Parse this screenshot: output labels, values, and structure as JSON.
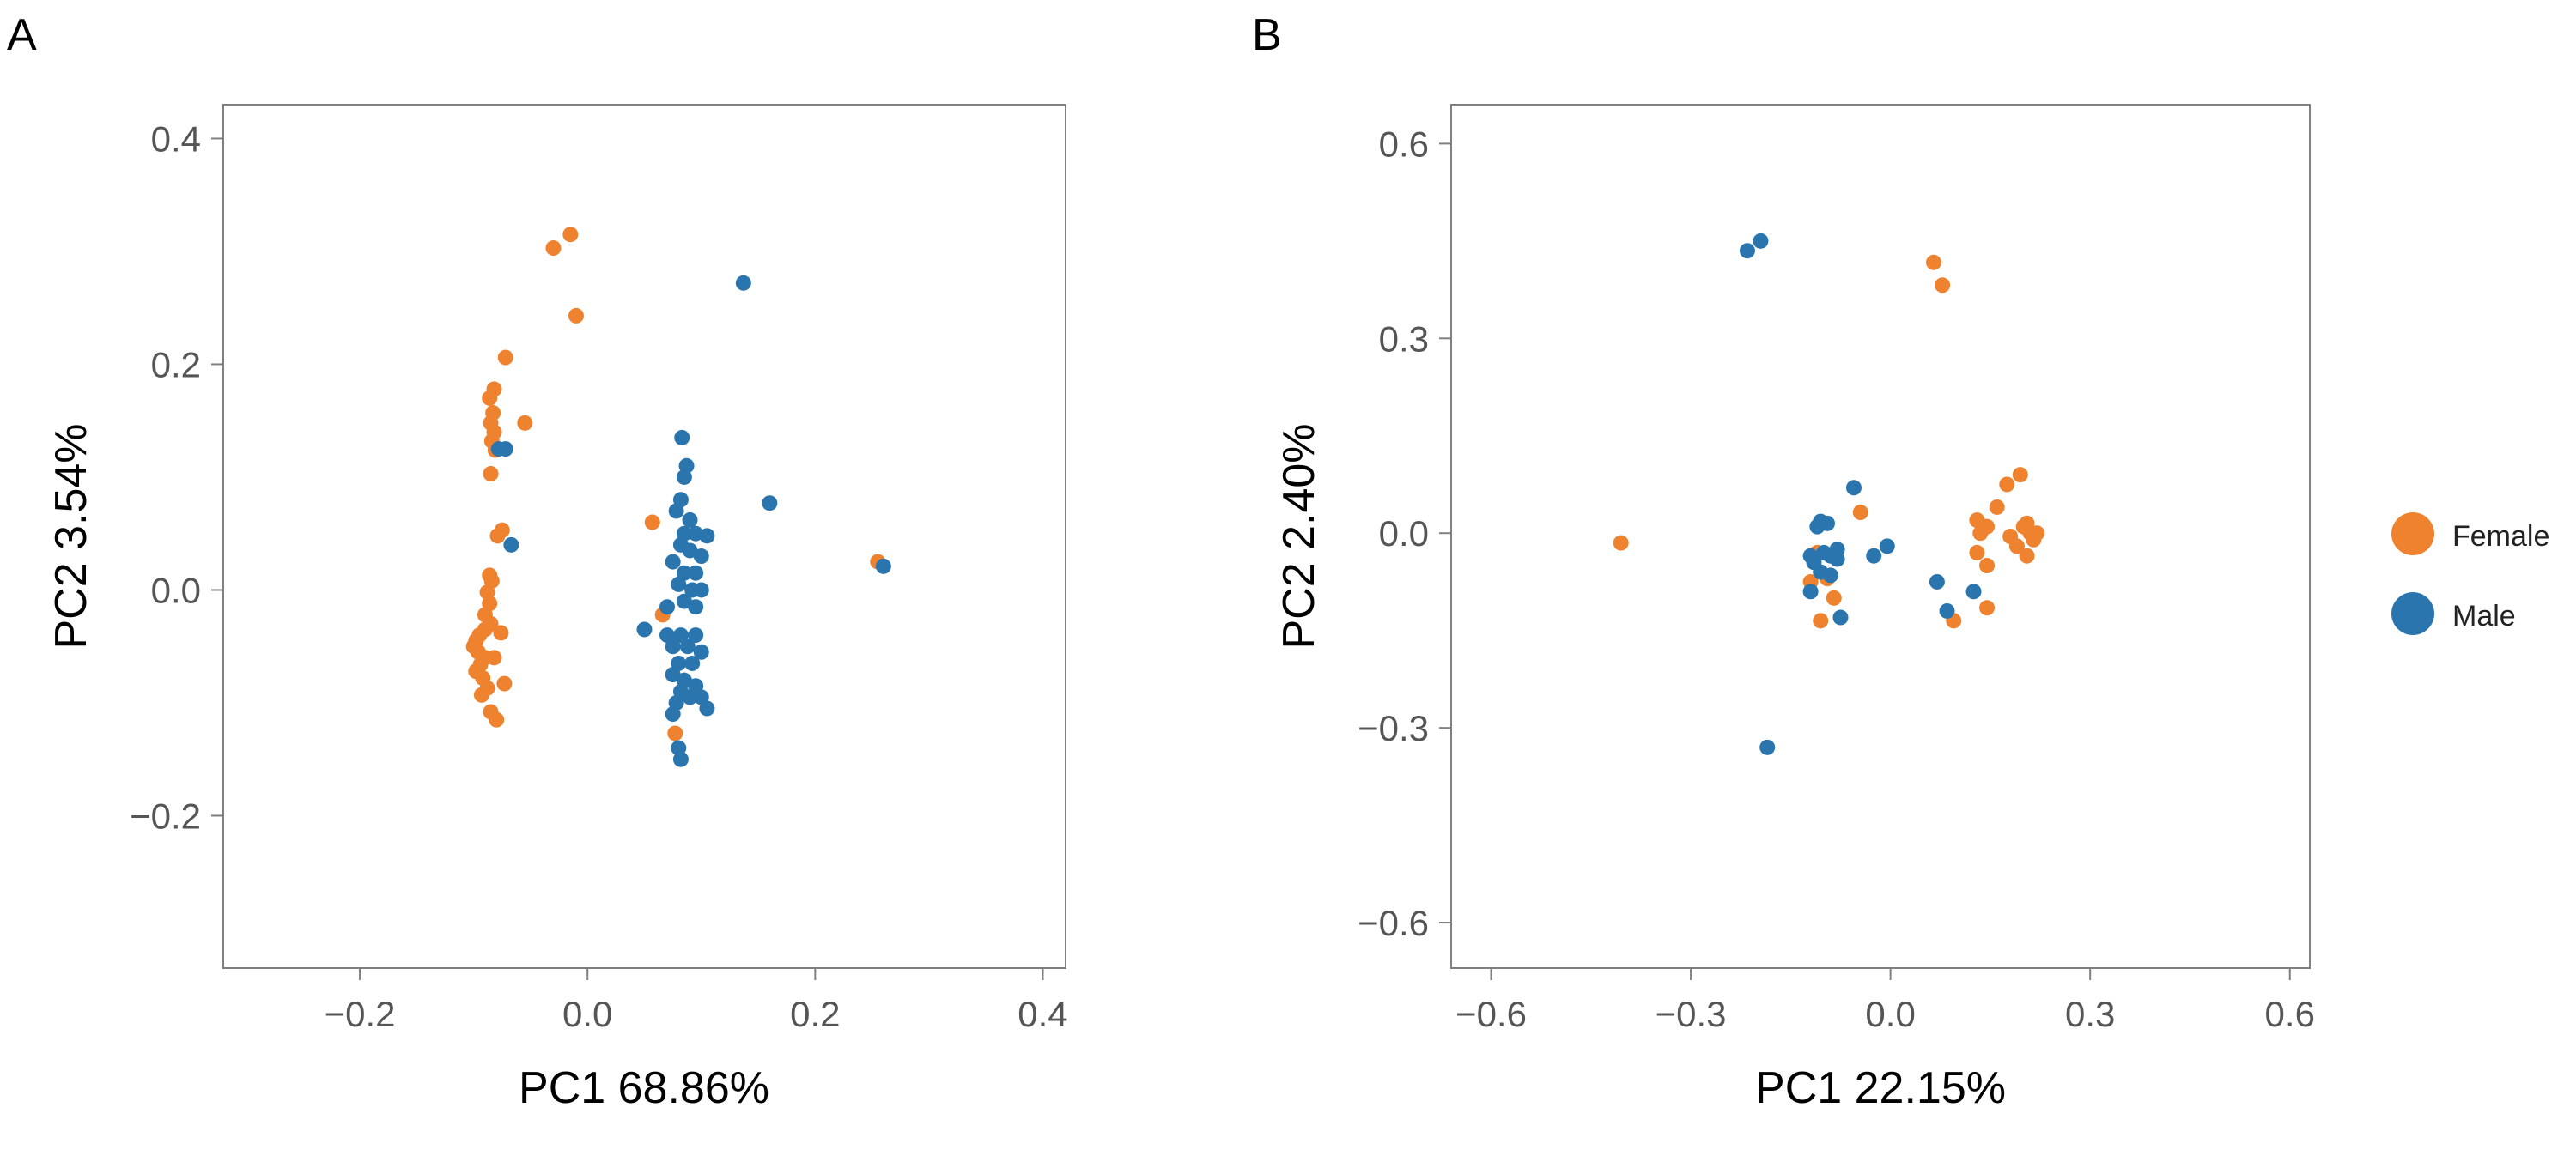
{
  "colors": {
    "Female": "#EE822F",
    "Male": "#2B75AE"
  },
  "legend": {
    "items": [
      "Female",
      "Male"
    ],
    "placement": "right"
  },
  "chart_data": [
    {
      "panel": "A",
      "type": "scatter",
      "xlabel": "PC1 68.86%",
      "ylabel": "PC2 3.54%",
      "xlim": [
        -0.32,
        0.42
      ],
      "ylim": [
        -0.335,
        0.43
      ],
      "xticks": [
        -0.2,
        0.0,
        0.2,
        0.4
      ],
      "xtick_labels": [
        "−0.2",
        "0.0",
        "0.2",
        "0.4"
      ],
      "yticks": [
        -0.2,
        0.0,
        0.2,
        0.4
      ],
      "ytick_labels": [
        "−0.2",
        "0.0",
        "0.2",
        "0.4"
      ],
      "grid": false,
      "series": [
        {
          "name": "Female",
          "color": "#EE822F",
          "points": [
            [
              -0.015,
              0.315
            ],
            [
              -0.03,
              0.303
            ],
            [
              -0.01,
              0.243
            ],
            [
              -0.072,
              0.206
            ],
            [
              -0.082,
              0.178
            ],
            [
              -0.086,
              0.17
            ],
            [
              -0.083,
              0.157
            ],
            [
              -0.085,
              0.148
            ],
            [
              -0.082,
              0.14
            ],
            [
              -0.084,
              0.132
            ],
            [
              -0.081,
              0.124
            ],
            [
              -0.085,
              0.103
            ],
            [
              -0.055,
              0.148
            ],
            [
              -0.075,
              0.053
            ],
            [
              -0.079,
              0.048
            ],
            [
              -0.086,
              0.013
            ],
            [
              -0.084,
              0.008
            ],
            [
              -0.088,
              -0.002
            ],
            [
              -0.086,
              -0.012
            ],
            [
              -0.09,
              -0.022
            ],
            [
              -0.085,
              -0.03
            ],
            [
              -0.09,
              -0.035
            ],
            [
              -0.095,
              -0.04
            ],
            [
              -0.098,
              -0.045
            ],
            [
              -0.1,
              -0.05
            ],
            [
              -0.096,
              -0.055
            ],
            [
              -0.09,
              -0.06
            ],
            [
              -0.094,
              -0.066
            ],
            [
              -0.098,
              -0.072
            ],
            [
              -0.092,
              -0.078
            ],
            [
              -0.088,
              -0.087
            ],
            [
              -0.093,
              -0.093
            ],
            [
              -0.085,
              -0.108
            ],
            [
              -0.08,
              -0.115
            ],
            [
              -0.073,
              -0.083
            ],
            [
              -0.076,
              -0.038
            ],
            [
              -0.082,
              -0.06
            ],
            [
              0.057,
              0.06
            ],
            [
              0.066,
              -0.022
            ],
            [
              0.077,
              -0.127
            ],
            [
              0.255,
              0.025
            ]
          ]
        },
        {
          "name": "Male",
          "color": "#2B75AE",
          "points": [
            [
              0.137,
              0.272
            ],
            [
              0.16,
              0.077
            ],
            [
              0.26,
              0.021
            ],
            [
              -0.078,
              0.125
            ],
            [
              -0.072,
              0.125
            ],
            [
              -0.067,
              0.04
            ],
            [
              0.083,
              0.135
            ],
            [
              0.087,
              0.11
            ],
            [
              0.085,
              0.1
            ],
            [
              0.082,
              0.08
            ],
            [
              0.078,
              0.07
            ],
            [
              0.09,
              0.062
            ],
            [
              0.085,
              0.05
            ],
            [
              0.095,
              0.05
            ],
            [
              0.105,
              0.048
            ],
            [
              0.082,
              0.04
            ],
            [
              0.09,
              0.035
            ],
            [
              0.1,
              0.03
            ],
            [
              0.075,
              0.025
            ],
            [
              0.085,
              0.015
            ],
            [
              0.095,
              0.015
            ],
            [
              0.08,
              0.005
            ],
            [
              0.092,
              0.0
            ],
            [
              0.1,
              0.0
            ],
            [
              0.085,
              -0.01
            ],
            [
              0.07,
              -0.015
            ],
            [
              0.095,
              -0.015
            ],
            [
              0.05,
              -0.035
            ],
            [
              0.07,
              -0.04
            ],
            [
              0.082,
              -0.04
            ],
            [
              0.095,
              -0.04
            ],
            [
              0.075,
              -0.05
            ],
            [
              0.088,
              -0.05
            ],
            [
              0.1,
              -0.055
            ],
            [
              0.08,
              -0.065
            ],
            [
              0.092,
              -0.065
            ],
            [
              0.075,
              -0.075
            ],
            [
              0.085,
              -0.08
            ],
            [
              0.095,
              -0.085
            ],
            [
              0.082,
              -0.09
            ],
            [
              0.09,
              -0.095
            ],
            [
              0.1,
              -0.095
            ],
            [
              0.078,
              -0.1
            ],
            [
              0.105,
              -0.105
            ],
            [
              0.075,
              -0.11
            ],
            [
              0.08,
              -0.14
            ],
            [
              0.082,
              -0.15
            ]
          ]
        }
      ]
    },
    {
      "panel": "B",
      "type": "scatter",
      "xlabel": "PC1 22.15%",
      "ylabel": "PC2 2.40%",
      "xlim": [
        -0.66,
        0.63
      ],
      "ylim": [
        -0.67,
        0.66
      ],
      "xticks": [
        -0.6,
        -0.3,
        0.0,
        0.3,
        0.6
      ],
      "xtick_labels": [
        "−0.6",
        "−0.3",
        "0.0",
        "0.3",
        "0.6"
      ],
      "yticks": [
        -0.6,
        -0.3,
        0.0,
        0.3,
        0.6
      ],
      "ytick_labels": [
        "−0.6",
        "−0.3",
        "0.0",
        "0.3",
        "0.6"
      ],
      "grid": false,
      "series": [
        {
          "name": "Female",
          "color": "#EE822F",
          "points": [
            [
              0.065,
              0.417
            ],
            [
              0.078,
              0.382
            ],
            [
              -0.405,
              -0.015
            ],
            [
              -0.045,
              0.032
            ],
            [
              -0.11,
              -0.03
            ],
            [
              -0.12,
              -0.075
            ],
            [
              -0.095,
              -0.07
            ],
            [
              -0.085,
              -0.1
            ],
            [
              -0.105,
              -0.135
            ],
            [
              0.095,
              -0.135
            ],
            [
              0.145,
              -0.115
            ],
            [
              0.145,
              -0.05
            ],
            [
              0.13,
              -0.03
            ],
            [
              0.135,
              0.0
            ],
            [
              0.13,
              0.02
            ],
            [
              0.145,
              0.01
            ],
            [
              0.16,
              0.04
            ],
            [
              0.175,
              0.075
            ],
            [
              0.195,
              0.09
            ],
            [
              0.18,
              -0.005
            ],
            [
              0.2,
              0.01
            ],
            [
              0.21,
              0.0
            ],
            [
              0.19,
              -0.02
            ],
            [
              0.205,
              -0.035
            ],
            [
              0.22,
              0.0
            ],
            [
              0.205,
              0.015
            ],
            [
              0.215,
              -0.01
            ]
          ]
        },
        {
          "name": "Male",
          "color": "#2B75AE",
          "points": [
            [
              -0.215,
              0.435
            ],
            [
              -0.195,
              0.45
            ],
            [
              -0.185,
              -0.33
            ],
            [
              -0.055,
              0.07
            ],
            [
              -0.11,
              0.01
            ],
            [
              -0.105,
              0.018
            ],
            [
              -0.095,
              0.015
            ],
            [
              -0.12,
              -0.035
            ],
            [
              -0.1,
              -0.03
            ],
            [
              -0.09,
              -0.035
            ],
            [
              -0.08,
              -0.025
            ],
            [
              -0.115,
              -0.045
            ],
            [
              -0.105,
              -0.06
            ],
            [
              -0.09,
              -0.065
            ],
            [
              -0.08,
              -0.04
            ],
            [
              -0.12,
              -0.09
            ],
            [
              -0.075,
              -0.13
            ],
            [
              -0.005,
              -0.02
            ],
            [
              -0.025,
              -0.035
            ],
            [
              0.07,
              -0.075
            ],
            [
              0.085,
              -0.12
            ],
            [
              0.125,
              -0.09
            ]
          ]
        }
      ]
    }
  ]
}
